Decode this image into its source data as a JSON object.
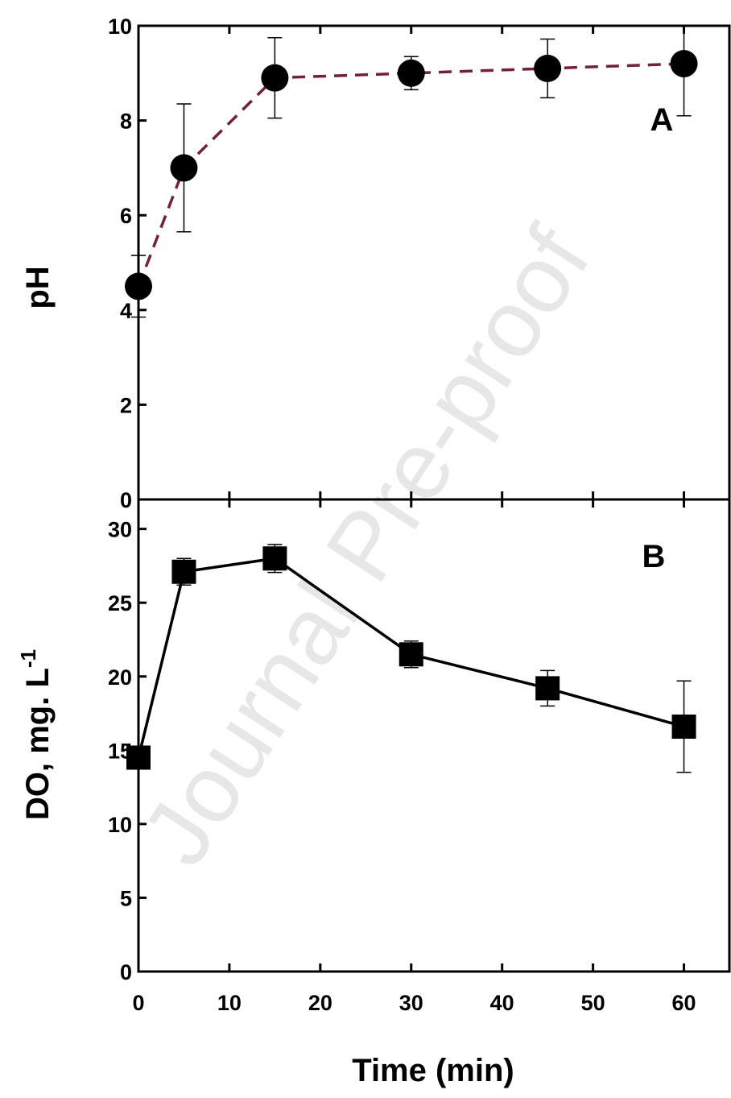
{
  "watermark": "Journal Pre-proof",
  "colors": {
    "line_a": "#722235",
    "line_b": "#000000",
    "marker": "#000000"
  },
  "chart_data": [
    {
      "type": "line",
      "panel_label": "A",
      "xlabel": "",
      "ylabel": "pH",
      "xlim": [
        0,
        65
      ],
      "ylim": [
        0,
        10
      ],
      "yticks": [
        0,
        2,
        4,
        6,
        8,
        10
      ],
      "line_style": "dashed",
      "marker": "circle",
      "x": [
        0,
        5,
        15,
        30,
        45,
        60
      ],
      "y": [
        4.5,
        7.0,
        8.9,
        9.0,
        9.1,
        9.2
      ],
      "error": [
        0.65,
        1.35,
        0.85,
        0.35,
        0.62,
        1.1
      ]
    },
    {
      "type": "line",
      "panel_label": "B",
      "xlabel": "Time (min)",
      "ylabel_main": "DO, mg. L",
      "ylabel_sup": "-1",
      "xlim": [
        0,
        65
      ],
      "ylim": [
        0,
        32
      ],
      "xticks": [
        0,
        10,
        20,
        30,
        40,
        50,
        60
      ],
      "yticks": [
        0,
        5,
        10,
        15,
        20,
        25,
        30
      ],
      "line_style": "solid",
      "marker": "square",
      "x": [
        0,
        5,
        15,
        30,
        45,
        60
      ],
      "y": [
        14.5,
        27.1,
        28.0,
        21.5,
        19.2,
        16.6
      ],
      "error": [
        0.3,
        0.9,
        0.95,
        0.9,
        1.2,
        3.1
      ]
    }
  ]
}
